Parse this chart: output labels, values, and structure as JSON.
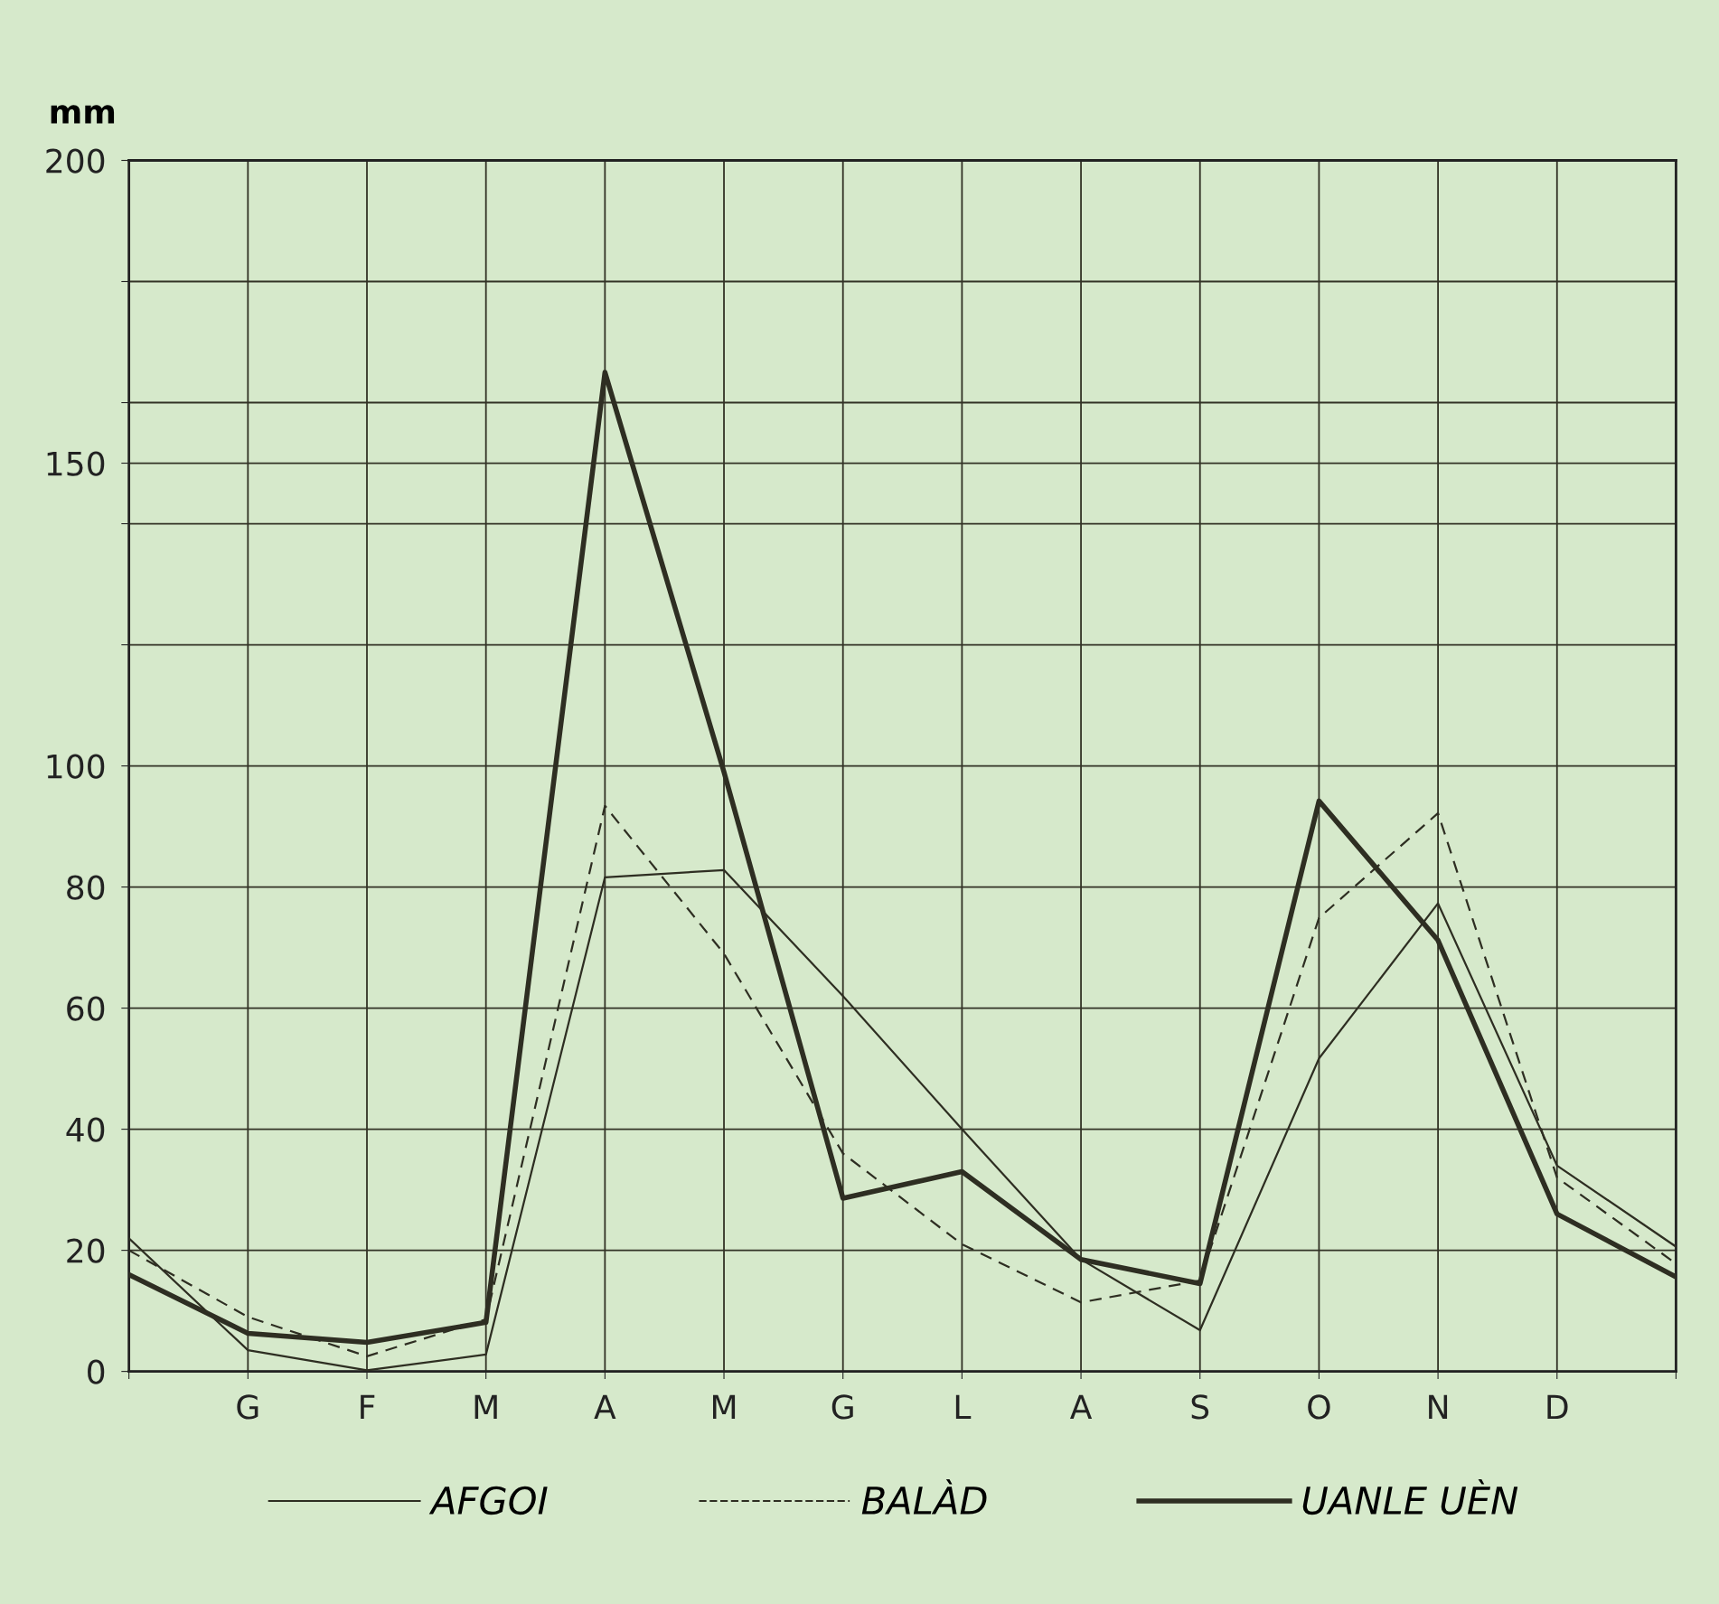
{
  "chart_data": {
    "type": "line",
    "ylabel": "mm",
    "categories": [
      null,
      "G",
      "F",
      "M",
      "A",
      "M",
      "G",
      "L",
      "A",
      "S",
      "O",
      "N",
      "D",
      null
    ],
    "series": [
      {
        "name": "AFGOI",
        "color": "#2e2e22",
        "line_style": "solid",
        "values": [
          22,
          3.5,
          0.2,
          2.8,
          81.6,
          82.8,
          62,
          40,
          18.5,
          6.8,
          51.7,
          77.3,
          34,
          20.6
        ]
      },
      {
        "name": "BALÀD",
        "color": "#2e2e22",
        "line_style": "dashed",
        "values": [
          20,
          9,
          2.5,
          8.6,
          93.4,
          69,
          36,
          21,
          11.4,
          15,
          74.9,
          92.2,
          32,
          17.8
        ]
      },
      {
        "name": "UANLE UÈN",
        "color": "#2e2e22",
        "line_style": "solid",
        "values": [
          16,
          6.3,
          4.8,
          8.1,
          165,
          99,
          28.6,
          33,
          18.5,
          14.5,
          94.2,
          71.2,
          26,
          15.6
        ]
      }
    ],
    "ylim": [
      0,
      200
    ],
    "yticks": [
      0,
      20,
      40,
      60,
      80,
      100,
      {
        "value": 120,
        "label": null
      },
      {
        "value": 140,
        "label": null
      },
      150,
      {
        "value": 160,
        "label": null
      },
      {
        "value": 180,
        "label": null
      },
      200
    ],
    "grid": true,
    "legend": "bottom",
    "marker": "none"
  }
}
